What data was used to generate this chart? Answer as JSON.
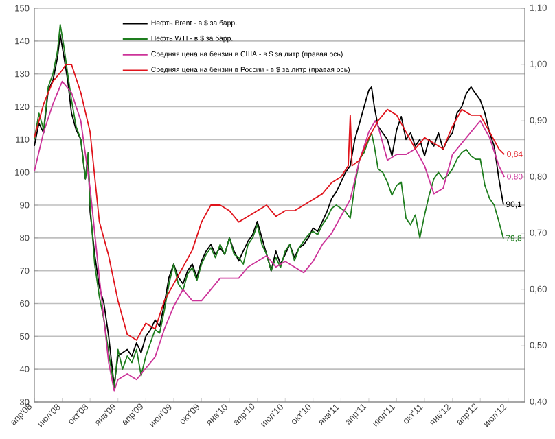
{
  "chart_data": {
    "type": "line",
    "xlim": [
      "2008-04-01",
      "2012-08-25"
    ],
    "xticks": [
      {
        "value": "2008-04",
        "label": "апр'08"
      },
      {
        "value": "2008-07",
        "label": "июл'08"
      },
      {
        "value": "2008-10",
        "label": "окт'08"
      },
      {
        "value": "2009-01",
        "label": "янв'09"
      },
      {
        "value": "2009-04",
        "label": "апр'09"
      },
      {
        "value": "2009-07",
        "label": "июл'09"
      },
      {
        "value": "2009-10",
        "label": "окт'09"
      },
      {
        "value": "2010-01",
        "label": "янв'10"
      },
      {
        "value": "2010-04",
        "label": "апр'10"
      },
      {
        "value": "2010-07",
        "label": "июл'10"
      },
      {
        "value": "2010-10",
        "label": "окт'10"
      },
      {
        "value": "2011-01",
        "label": "янв'11"
      },
      {
        "value": "2011-04",
        "label": "апр'11"
      },
      {
        "value": "2011-07",
        "label": "июл'11"
      },
      {
        "value": "2011-10",
        "label": "окт'11"
      },
      {
        "value": "2012-01",
        "label": "янв'12"
      },
      {
        "value": "2012-04",
        "label": "апр'12"
      },
      {
        "value": "2012-07",
        "label": "июл'12"
      }
    ],
    "ylim": [
      30,
      150
    ],
    "yticks": [
      30,
      40,
      50,
      60,
      70,
      80,
      90,
      100,
      110,
      120,
      130,
      140,
      150
    ],
    "y2lim": [
      0.4,
      1.1
    ],
    "y2ticks": [
      {
        "value": 0.4,
        "label": "0,40"
      },
      {
        "value": 0.5,
        "label": "0,50"
      },
      {
        "value": 0.6,
        "label": "0,60"
      },
      {
        "value": 0.7,
        "label": "0,70"
      },
      {
        "value": 0.8,
        "label": "0,80"
      },
      {
        "value": 0.9,
        "label": "0,90"
      },
      {
        "value": 1.0,
        "label": "1,00"
      },
      {
        "value": 1.1,
        "label": "1,10"
      }
    ],
    "grid": "y",
    "legend": "top",
    "series": [
      {
        "name": "Нефть Brent - в $ за барр.",
        "color": "#000000",
        "x": [
          "2008-04-01",
          "2008-04-16",
          "2008-05-01",
          "2008-05-16",
          "2008-06-01",
          "2008-06-16",
          "2008-06-25",
          "2008-07-07",
          "2008-07-19",
          "2008-08-01",
          "2008-08-16",
          "2008-09-01",
          "2008-09-16",
          "2008-09-25",
          "2008-10-01",
          "2008-10-16",
          "2008-11-01",
          "2008-11-16",
          "2008-12-01",
          "2008-12-13",
          "2008-12-19",
          "2009-01-01",
          "2009-01-16",
          "2009-02-01",
          "2009-02-16",
          "2009-03-01",
          "2009-03-16",
          "2009-04-01",
          "2009-04-16",
          "2009-05-01",
          "2009-05-16",
          "2009-06-01",
          "2009-06-16",
          "2009-07-01",
          "2009-07-16",
          "2009-08-01",
          "2009-08-16",
          "2009-09-01",
          "2009-09-16",
          "2009-10-01",
          "2009-10-16",
          "2009-11-01",
          "2009-11-16",
          "2009-12-01",
          "2009-12-16",
          "2010-01-01",
          "2010-01-16",
          "2010-02-01",
          "2010-02-16",
          "2010-03-01",
          "2010-03-16",
          "2010-04-01",
          "2010-04-16",
          "2010-05-01",
          "2010-05-16",
          "2010-06-01",
          "2010-06-16",
          "2010-07-01",
          "2010-07-16",
          "2010-08-01",
          "2010-08-16",
          "2010-09-01",
          "2010-09-16",
          "2010-10-01",
          "2010-10-16",
          "2010-11-01",
          "2010-11-16",
          "2010-12-01",
          "2010-12-16",
          "2011-01-01",
          "2011-01-16",
          "2011-02-01",
          "2011-02-16",
          "2011-03-01",
          "2011-03-16",
          "2011-04-01",
          "2011-04-10",
          "2011-04-19",
          "2011-05-01",
          "2011-05-16",
          "2011-06-01",
          "2011-06-16",
          "2011-07-01",
          "2011-07-16",
          "2011-08-01",
          "2011-08-16",
          "2011-09-01",
          "2011-09-16",
          "2011-10-01",
          "2011-10-16",
          "2011-11-01",
          "2011-11-16",
          "2011-12-01",
          "2011-12-16",
          "2012-01-01",
          "2012-01-16",
          "2012-02-01",
          "2012-02-16",
          "2012-03-01",
          "2012-03-16",
          "2012-04-01",
          "2012-04-16",
          "2012-05-01",
          "2012-05-16",
          "2012-06-01",
          "2012-06-16"
        ],
        "values": [
          108,
          115,
          112,
          125,
          128,
          135,
          142,
          135,
          128,
          118,
          113,
          110,
          98,
          105,
          88,
          75,
          65,
          60,
          50,
          40,
          35,
          44,
          45,
          46,
          44,
          48,
          45,
          50,
          52,
          55,
          53,
          60,
          68,
          72,
          68,
          66,
          70,
          72,
          68,
          73,
          76,
          78,
          75,
          77,
          75,
          80,
          76,
          73,
          76,
          79,
          81,
          85,
          80,
          75,
          70,
          76,
          72,
          75,
          78,
          74,
          77,
          78,
          80,
          83,
          82,
          85,
          88,
          92,
          94,
          97,
          100,
          102,
          110,
          115,
          120,
          125,
          126,
          120,
          114,
          112,
          110,
          105,
          113,
          117,
          110,
          112,
          108,
          110,
          105,
          110,
          108,
          112,
          107,
          110,
          112,
          118,
          120,
          124,
          126,
          124,
          122,
          118,
          112,
          108,
          98,
          90.1
        ],
        "value_labels": [
          null,
          null,
          null,
          null,
          null,
          null,
          null,
          null,
          null,
          null,
          null,
          null,
          null,
          null,
          null,
          null,
          null,
          null,
          null,
          null,
          null,
          null,
          null,
          null,
          null,
          null,
          null,
          null,
          null,
          null,
          null,
          null,
          null,
          null,
          null,
          null,
          null,
          null,
          null,
          null,
          null,
          null,
          null,
          null,
          null,
          null,
          null,
          null,
          null,
          null,
          null,
          null,
          null,
          null,
          null,
          null,
          null,
          null,
          null,
          null,
          null,
          null,
          null,
          null,
          null,
          null,
          null,
          null,
          null,
          null,
          null,
          null,
          null,
          null,
          null,
          null,
          null,
          null,
          null,
          null,
          null,
          null,
          null,
          null,
          null,
          null,
          null,
          null,
          null,
          null,
          null,
          null,
          null,
          null,
          null,
          null,
          null,
          null,
          null,
          null,
          null,
          null,
          null,
          null,
          null,
          "90,1"
        ]
      },
      {
        "name": "Нефть WTI - в $ за барр.",
        "color": "#1e7d1e",
        "x": [
          "2008-04-01",
          "2008-04-16",
          "2008-05-01",
          "2008-05-16",
          "2008-06-01",
          "2008-06-16",
          "2008-06-25",
          "2008-07-07",
          "2008-07-19",
          "2008-08-01",
          "2008-08-16",
          "2008-09-01",
          "2008-09-16",
          "2008-09-25",
          "2008-10-01",
          "2008-10-16",
          "2008-11-01",
          "2008-11-16",
          "2008-12-01",
          "2008-12-13",
          "2008-12-19",
          "2009-01-01",
          "2009-01-16",
          "2009-02-01",
          "2009-02-16",
          "2009-03-01",
          "2009-03-16",
          "2009-04-01",
          "2009-04-16",
          "2009-05-01",
          "2009-05-16",
          "2009-06-01",
          "2009-06-16",
          "2009-07-01",
          "2009-07-16",
          "2009-08-01",
          "2009-08-16",
          "2009-09-01",
          "2009-09-16",
          "2009-10-01",
          "2009-10-16",
          "2009-11-01",
          "2009-11-16",
          "2009-12-01",
          "2009-12-16",
          "2010-01-01",
          "2010-01-16",
          "2010-02-01",
          "2010-02-16",
          "2010-03-01",
          "2010-03-16",
          "2010-04-01",
          "2010-04-16",
          "2010-05-01",
          "2010-05-16",
          "2010-06-01",
          "2010-06-16",
          "2010-07-01",
          "2010-07-16",
          "2010-08-01",
          "2010-08-16",
          "2010-09-01",
          "2010-09-16",
          "2010-10-01",
          "2010-10-16",
          "2010-11-01",
          "2010-11-16",
          "2010-12-01",
          "2010-12-16",
          "2011-01-01",
          "2011-01-16",
          "2011-02-01",
          "2011-02-16",
          "2011-03-01",
          "2011-03-16",
          "2011-04-01",
          "2011-04-10",
          "2011-04-19",
          "2011-05-01",
          "2011-05-16",
          "2011-06-01",
          "2011-06-16",
          "2011-07-01",
          "2011-07-16",
          "2011-08-01",
          "2011-08-16",
          "2011-09-01",
          "2011-09-16",
          "2011-10-01",
          "2011-10-16",
          "2011-11-01",
          "2011-11-16",
          "2011-12-01",
          "2011-12-16",
          "2012-01-01",
          "2012-01-16",
          "2012-02-01",
          "2012-02-16",
          "2012-03-01",
          "2012-03-16",
          "2012-04-01",
          "2012-04-16",
          "2012-05-01",
          "2012-05-16",
          "2012-06-01",
          "2012-06-16"
        ],
        "values": [
          110,
          118,
          113,
          126,
          130,
          137,
          145,
          138,
          130,
          122,
          114,
          110,
          98,
          106,
          90,
          72,
          62,
          55,
          45,
          38,
          34,
          46,
          40,
          44,
          42,
          46,
          38,
          44,
          48,
          52,
          51,
          58,
          66,
          72,
          66,
          64,
          69,
          71,
          67,
          72,
          75,
          77,
          74,
          78,
          75,
          80,
          75,
          74,
          72,
          78,
          80,
          84,
          78,
          75,
          70,
          74,
          71,
          76,
          78,
          73,
          77,
          79,
          81,
          82,
          81,
          84,
          86,
          89,
          90,
          89,
          88,
          86,
          96,
          104,
          106,
          110,
          112,
          108,
          101,
          100,
          97,
          93,
          96,
          97,
          86,
          84,
          87,
          80,
          87,
          93,
          98,
          100,
          98,
          99,
          101,
          104,
          106,
          107,
          105,
          104,
          104,
          96,
          92,
          90,
          85,
          79.8
        ],
        "value_labels": [
          null,
          null,
          null,
          null,
          null,
          null,
          null,
          null,
          null,
          null,
          null,
          null,
          null,
          null,
          null,
          null,
          null,
          null,
          null,
          null,
          null,
          null,
          null,
          null,
          null,
          null,
          null,
          null,
          null,
          null,
          null,
          null,
          null,
          null,
          null,
          null,
          null,
          null,
          null,
          null,
          null,
          null,
          null,
          null,
          null,
          null,
          null,
          null,
          null,
          null,
          null,
          null,
          null,
          null,
          null,
          null,
          null,
          null,
          null,
          null,
          null,
          null,
          null,
          null,
          null,
          null,
          null,
          null,
          null,
          null,
          null,
          null,
          null,
          null,
          null,
          null,
          null,
          null,
          null,
          null,
          null,
          null,
          null,
          null,
          null,
          null,
          null,
          null,
          null,
          null,
          null,
          null,
          null,
          null,
          null,
          null,
          null,
          null,
          null,
          null,
          null,
          null,
          null,
          null,
          null,
          "79,8"
        ]
      },
      {
        "name": "Средняя цена на бензин в США - в $ за литр (правая ось)",
        "color": "#cc3399",
        "axis": "y2",
        "x": [
          "2008-04-01",
          "2008-05-01",
          "2008-06-01",
          "2008-07-01",
          "2008-08-01",
          "2008-09-01",
          "2008-10-01",
          "2008-11-01",
          "2008-12-01",
          "2008-12-19",
          "2009-01-01",
          "2009-02-01",
          "2009-03-01",
          "2009-04-01",
          "2009-05-01",
          "2009-06-01",
          "2009-07-01",
          "2009-08-01",
          "2009-09-01",
          "2009-10-01",
          "2009-11-01",
          "2009-12-01",
          "2010-01-01",
          "2010-02-01",
          "2010-03-01",
          "2010-04-01",
          "2010-05-01",
          "2010-06-01",
          "2010-07-01",
          "2010-08-01",
          "2010-09-01",
          "2010-10-01",
          "2010-11-01",
          "2010-12-01",
          "2011-01-01",
          "2011-02-01",
          "2011-03-01",
          "2011-04-01",
          "2011-04-22",
          "2011-05-01",
          "2011-06-01",
          "2011-07-01",
          "2011-08-01",
          "2011-09-01",
          "2011-10-01",
          "2011-11-01",
          "2011-12-01",
          "2012-01-01",
          "2012-02-01",
          "2012-03-01",
          "2012-04-01",
          "2012-05-01",
          "2012-06-01",
          "2012-06-19"
        ],
        "values": [
          0.81,
          0.88,
          0.93,
          0.97,
          0.95,
          0.9,
          0.78,
          0.62,
          0.47,
          0.42,
          0.44,
          0.45,
          0.44,
          0.46,
          0.48,
          0.53,
          0.57,
          0.6,
          0.58,
          0.58,
          0.6,
          0.62,
          0.62,
          0.62,
          0.64,
          0.65,
          0.66,
          0.64,
          0.65,
          0.64,
          0.63,
          0.65,
          0.68,
          0.7,
          0.73,
          0.76,
          0.83,
          0.88,
          0.9,
          0.89,
          0.83,
          0.84,
          0.84,
          0.85,
          0.82,
          0.77,
          0.78,
          0.84,
          0.86,
          0.88,
          0.9,
          0.87,
          0.82,
          0.8
        ],
        "value_labels": [
          null,
          null,
          null,
          null,
          null,
          null,
          null,
          null,
          null,
          null,
          null,
          null,
          null,
          null,
          null,
          null,
          null,
          null,
          null,
          null,
          null,
          null,
          null,
          null,
          null,
          null,
          null,
          null,
          null,
          null,
          null,
          null,
          null,
          null,
          null,
          null,
          null,
          null,
          null,
          null,
          null,
          null,
          null,
          null,
          null,
          null,
          null,
          null,
          null,
          null,
          null,
          null,
          null,
          "0,80"
        ]
      },
      {
        "name": "Средняя цена на бензин в России - в $ за литр (правая ось)",
        "color": "#e0141c",
        "axis": "y2",
        "x": [
          "2008-04-01",
          "2008-05-01",
          "2008-06-01",
          "2008-07-01",
          "2008-07-13",
          "2008-08-01",
          "2008-09-01",
          "2008-10-01",
          "2008-11-01",
          "2008-12-01",
          "2009-01-01",
          "2009-02-01",
          "2009-03-01",
          "2009-04-01",
          "2009-05-01",
          "2009-06-01",
          "2009-07-01",
          "2009-08-01",
          "2009-09-01",
          "2009-10-01",
          "2009-11-01",
          "2009-12-01",
          "2010-01-01",
          "2010-02-01",
          "2010-03-01",
          "2010-04-01",
          "2010-05-01",
          "2010-06-01",
          "2010-07-01",
          "2010-08-01",
          "2010-09-01",
          "2010-10-01",
          "2010-11-01",
          "2010-12-01",
          "2011-01-01",
          "2011-01-25",
          "2011-02-01",
          "2011-02-07",
          "2011-03-01",
          "2011-04-01",
          "2011-05-01",
          "2011-06-01",
          "2011-07-01",
          "2011-08-01",
          "2011-09-01",
          "2011-10-01",
          "2011-11-01",
          "2011-12-01",
          "2012-01-01",
          "2012-02-01",
          "2012-03-01",
          "2012-04-01",
          "2012-05-01",
          "2012-06-01",
          "2012-06-19"
        ],
        "values": [
          0.87,
          0.93,
          0.97,
          0.99,
          1.0,
          1.0,
          0.95,
          0.88,
          0.72,
          0.66,
          0.58,
          0.52,
          0.51,
          0.54,
          0.53,
          0.58,
          0.61,
          0.64,
          0.67,
          0.72,
          0.75,
          0.75,
          0.74,
          0.72,
          0.73,
          0.74,
          0.75,
          0.73,
          0.74,
          0.74,
          0.75,
          0.76,
          0.77,
          0.79,
          0.8,
          0.82,
          0.91,
          0.82,
          0.83,
          0.87,
          0.9,
          0.92,
          0.91,
          0.88,
          0.85,
          0.87,
          0.86,
          0.85,
          0.89,
          0.92,
          0.91,
          0.91,
          0.88,
          0.85,
          0.84
        ],
        "value_labels": [
          null,
          null,
          null,
          null,
          null,
          null,
          null,
          null,
          null,
          null,
          null,
          null,
          null,
          null,
          null,
          null,
          null,
          null,
          null,
          null,
          null,
          null,
          null,
          null,
          null,
          null,
          null,
          null,
          null,
          null,
          null,
          null,
          null,
          null,
          null,
          null,
          null,
          null,
          null,
          null,
          null,
          null,
          null,
          null,
          null,
          null,
          null,
          null,
          null,
          null,
          null,
          null,
          null,
          null,
          "0,84"
        ]
      }
    ]
  }
}
